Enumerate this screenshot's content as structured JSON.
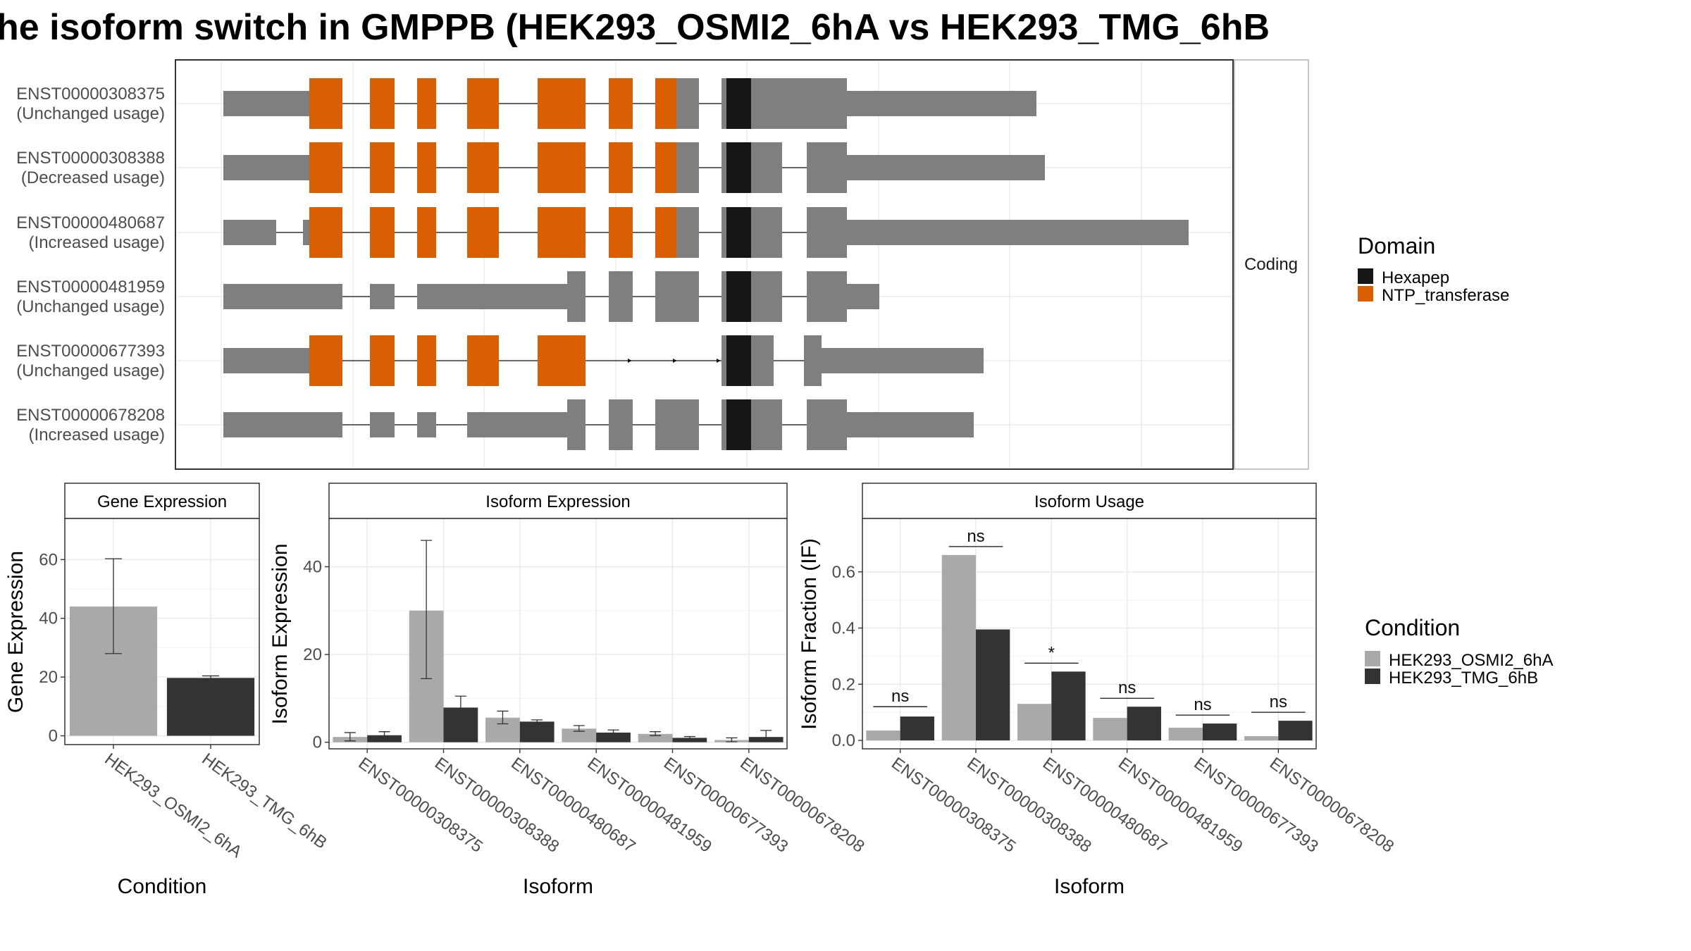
{
  "title": "he isoform switch in GMPPB (HEK293_OSMI2_6hA vs HEK293_TMG_6hB",
  "colors": {
    "exon": "#7f7f7f",
    "hexapep": "#161616",
    "ntp_transferase": "#d95f02",
    "cond1": "#a9a9a9",
    "cond2": "#333333",
    "strip": "#ffffff",
    "grid": "#ebebeb"
  },
  "structure": {
    "strip_label": "Coding",
    "isoforms": [
      {
        "id": "ENST00000308375",
        "usage": "(Unchanged usage)"
      },
      {
        "id": "ENST00000308388",
        "usage": "(Decreased usage)"
      },
      {
        "id": "ENST00000480687",
        "usage": "(Increased usage)"
      },
      {
        "id": "ENST00000481959",
        "usage": "(Unchanged usage)"
      },
      {
        "id": "ENST00000677393",
        "usage": "(Unchanged usage)"
      },
      {
        "id": "ENST00000678208",
        "usage": "(Increased usage)"
      }
    ],
    "domain_legend": {
      "title": "Domain",
      "items": [
        {
          "label": "Hexapep",
          "color": "#161616"
        },
        {
          "label": "NTP_transferase",
          "color": "#d95f02"
        }
      ]
    }
  },
  "condition_legend": {
    "title": "Condition",
    "items": [
      {
        "label": "HEK293_OSMI2_6hA",
        "color": "#a9a9a9"
      },
      {
        "label": "HEK293_TMG_6hB",
        "color": "#333333"
      }
    ]
  },
  "chart_data": [
    {
      "type": "bar",
      "title": "Gene Expression",
      "xlabel": "Condition",
      "ylabel": "Gene Expression",
      "categories": [
        "HEK293_OSMI2_6hA",
        "HEK293_TMG_6hB"
      ],
      "values": [
        44,
        19.7
      ],
      "errors": [
        [
          28,
          60.3
        ],
        [
          19,
          20.4
        ]
      ],
      "ylim": [
        -3,
        74
      ],
      "yticks": [
        0,
        20,
        40,
        60
      ]
    },
    {
      "type": "bar",
      "title": "Isoform Expression",
      "xlabel": "Isoform",
      "ylabel": "Isoform Expression",
      "categories": [
        "ENST00000308375",
        "ENST00000308388",
        "ENST00000480687",
        "ENST00000481959",
        "ENST00000677393",
        "ENST00000678208"
      ],
      "series": [
        {
          "name": "HEK293_OSMI2_6hA",
          "values": [
            1.2,
            30,
            5.6,
            3.1,
            1.9,
            0.5
          ],
          "errors": [
            [
              0.3,
              2.2
            ],
            [
              14.5,
              46
            ],
            [
              4.2,
              7.1
            ],
            [
              2.5,
              3.8
            ],
            [
              1.5,
              2.4
            ],
            [
              0.1,
              1.0
            ]
          ]
        },
        {
          "name": "HEK293_TMG_6hB",
          "values": [
            1.6,
            7.9,
            4.7,
            2.2,
            1.0,
            1.2
          ],
          "errors": [
            [
              0.9,
              2.4
            ],
            [
              5.4,
              10.5
            ],
            [
              4.2,
              5.1
            ],
            [
              1.6,
              2.8
            ],
            [
              0.7,
              1.3
            ],
            [
              0.2,
              2.7
            ]
          ]
        }
      ],
      "ylim": [
        -1.5,
        51
      ],
      "yticks": [
        0,
        20,
        40
      ]
    },
    {
      "type": "bar",
      "title": "Isoform Usage",
      "xlabel": "Isoform",
      "ylabel": "Isoform Fraction (IF)",
      "categories": [
        "ENST00000308375",
        "ENST00000308388",
        "ENST00000480687",
        "ENST00000481959",
        "ENST00000677393",
        "ENST00000678208"
      ],
      "series": [
        {
          "name": "HEK293_OSMI2_6hA",
          "values": [
            0.035,
            0.66,
            0.13,
            0.08,
            0.045,
            0.015
          ]
        },
        {
          "name": "HEK293_TMG_6hB",
          "values": [
            0.085,
            0.395,
            0.245,
            0.12,
            0.06,
            0.07
          ]
        }
      ],
      "significance": [
        {
          "label": "ns",
          "y": 0.12
        },
        {
          "label": "ns",
          "y": 0.69
        },
        {
          "label": "*",
          "y": 0.275
        },
        {
          "label": "ns",
          "y": 0.15
        },
        {
          "label": "ns",
          "y": 0.09
        },
        {
          "label": "ns",
          "y": 0.1
        }
      ],
      "ylim": [
        -0.03,
        0.79
      ],
      "yticks": [
        0.0,
        0.2,
        0.4,
        0.6
      ],
      "ytick_labels": [
        "0.0",
        "0.2",
        "0.4",
        "0.6"
      ]
    }
  ]
}
